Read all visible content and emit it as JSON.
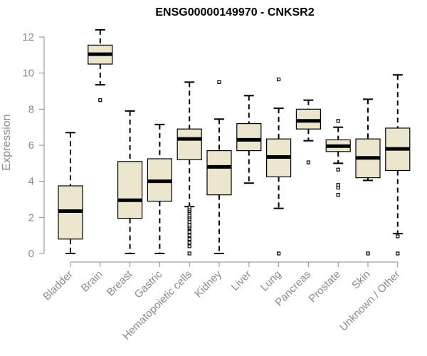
{
  "chart_data": {
    "type": "boxplot",
    "title": "ENSG00000149970 - CNKSR2",
    "ylabel": "Expression",
    "xlabel": "",
    "ylim": [
      0,
      12.5
    ],
    "yticks": [
      0,
      2,
      4,
      6,
      8,
      10,
      12
    ],
    "grid": false,
    "legend": "none",
    "colors": {
      "box_fill": "#ede6cf",
      "box_stroke": "#000000",
      "axis": "#8a8a8a",
      "text": "#8a8a8a"
    },
    "categories": [
      "Bladder",
      "Brain",
      "Breast",
      "Gastric",
      "Hematopoietic cells",
      "Kidney",
      "Liver",
      "Lung",
      "Pancreas",
      "Prostate",
      "Skin",
      "Unknown / Other"
    ],
    "boxes": [
      {
        "name": "Bladder",
        "whisker_low": 0.0,
        "q1": 0.8,
        "median": 2.35,
        "q3": 3.75,
        "whisker_high": 6.7,
        "outliers": []
      },
      {
        "name": "Brain",
        "whisker_low": 9.35,
        "q1": 10.5,
        "median": 11.05,
        "q3": 11.55,
        "whisker_high": 12.4,
        "outliers": [
          8.5
        ]
      },
      {
        "name": "Breast",
        "whisker_low": 0.0,
        "q1": 1.95,
        "median": 2.95,
        "q3": 5.1,
        "whisker_high": 7.9,
        "outliers": []
      },
      {
        "name": "Gastric",
        "whisker_low": 0.0,
        "q1": 2.9,
        "median": 4.0,
        "q3": 5.25,
        "whisker_high": 7.15,
        "outliers": []
      },
      {
        "name": "Hematopoietic cells",
        "whisker_low": 2.6,
        "q1": 5.2,
        "median": 6.35,
        "q3": 6.9,
        "whisker_high": 9.5,
        "outliers": [
          0.0,
          0.4,
          0.6,
          0.8,
          1.0,
          1.2,
          1.4,
          1.5,
          1.6,
          1.75,
          1.9,
          2.0,
          2.1,
          2.25,
          2.35,
          2.45,
          2.55
        ]
      },
      {
        "name": "Kidney",
        "whisker_low": 0.0,
        "q1": 3.25,
        "median": 4.8,
        "q3": 5.7,
        "whisker_high": 7.45,
        "outliers": [
          9.5
        ]
      },
      {
        "name": "Liver",
        "whisker_low": 3.9,
        "q1": 5.7,
        "median": 6.3,
        "q3": 7.2,
        "whisker_high": 8.75,
        "outliers": []
      },
      {
        "name": "Lung",
        "whisker_low": 2.5,
        "q1": 4.25,
        "median": 5.35,
        "q3": 6.35,
        "whisker_high": 8.05,
        "outliers": [
          0.0,
          9.65
        ]
      },
      {
        "name": "Pancreas",
        "whisker_low": 6.25,
        "q1": 6.9,
        "median": 7.35,
        "q3": 8.0,
        "whisker_high": 8.5,
        "outliers": [
          5.05
        ]
      },
      {
        "name": "Prostate",
        "whisker_low": 5.0,
        "q1": 5.65,
        "median": 5.95,
        "q3": 6.3,
        "whisker_high": 7.0,
        "outliers": [
          7.35,
          4.65,
          3.8,
          3.65,
          3.25
        ]
      },
      {
        "name": "Skin",
        "whisker_low": 4.05,
        "q1": 4.2,
        "median": 5.3,
        "q3": 6.35,
        "whisker_high": 8.55,
        "outliers": [
          0.0
        ]
      },
      {
        "name": "Unknown / Other",
        "whisker_low": 1.1,
        "q1": 4.6,
        "median": 5.8,
        "q3": 6.95,
        "whisker_high": 9.9,
        "outliers": [
          0.0,
          0.95
        ]
      }
    ]
  }
}
